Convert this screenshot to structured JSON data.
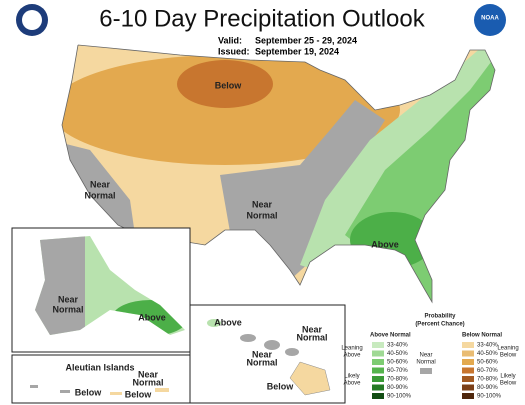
{
  "header": {
    "title": "6-10 Day Precipitation Outlook",
    "valid_label": "Valid:",
    "valid": "September 25 - 29, 2024",
    "issued_label": "Issued:",
    "issued": "September 19, 2024",
    "logo": "NOAA"
  },
  "map": {
    "labels": [
      {
        "lines": [
          "Below"
        ]
      },
      {
        "lines": [
          "Near",
          "Normal"
        ]
      },
      {
        "lines": [
          "Near",
          "Normal"
        ]
      },
      {
        "lines": [
          "Above"
        ]
      },
      {
        "lines": [
          "Near",
          "Normal"
        ]
      },
      {
        "lines": [
          "Above"
        ]
      },
      {
        "lines": [
          "Above"
        ]
      },
      {
        "lines": [
          "Near",
          "Normal"
        ]
      },
      {
        "lines": [
          "Near",
          "Normal"
        ]
      },
      {
        "lines": [
          "Below"
        ]
      },
      {
        "lines": [
          "Aleutian Islands"
        ]
      },
      {
        "lines": [
          "Near",
          "Normal"
        ]
      },
      {
        "lines": [
          "Below"
        ]
      },
      {
        "lines": [
          "Below"
        ]
      }
    ]
  },
  "legend": {
    "title": "Probability",
    "subtitle": "(Percent Chance)",
    "above": "Above Normal",
    "below": "Below Normal",
    "near": [
      "Near",
      "Normal"
    ],
    "leaning_above": [
      "Leaning",
      "Above"
    ],
    "likely_above": [
      "Likely",
      "Above"
    ],
    "leaning_below": [
      "Leaning",
      "Below"
    ],
    "likely_below": [
      "Likely",
      "Below"
    ],
    "above_levels": [
      "33-40%",
      "40-50%",
      "50-60%",
      "60-70%",
      "70-80%",
      "80-90%",
      "90-100%"
    ],
    "below_levels": [
      "33-40%",
      "40-50%",
      "50-60%",
      "60-70%",
      "70-80%",
      "80-90%",
      "90-100%"
    ]
  }
}
